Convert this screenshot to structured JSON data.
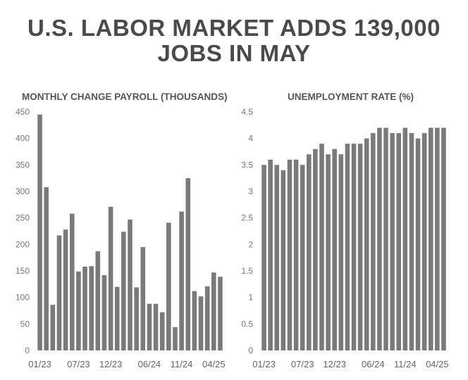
{
  "header": {
    "title_line1": "U.S. LABOR MARKET ADDS 139,000",
    "title_line2": "JOBS IN MAY"
  },
  "colors": {
    "bar": "#7a7a7a",
    "title": "#4a4a4a",
    "text": "#555555"
  },
  "chart_data": [
    {
      "type": "bar",
      "title": "MONTHLY CHANGE PAYROLL (THOUSANDS)",
      "ylim": [
        0,
        450
      ],
      "yticks": [
        "0",
        "50",
        "100",
        "150",
        "200",
        "250",
        "300",
        "350",
        "400",
        "450"
      ],
      "xtick_labels": [
        "01/23",
        "07/23",
        "12/23",
        "06/24",
        "11/24",
        "04/25"
      ],
      "xtick_index": [
        0,
        6,
        11,
        17,
        22,
        27
      ],
      "values": [
        445,
        308,
        86,
        217,
        228,
        258,
        149,
        158,
        159,
        187,
        142,
        271,
        120,
        224,
        247,
        119,
        195,
        88,
        88,
        72,
        241,
        44,
        262,
        325,
        112,
        102,
        121,
        147,
        139
      ],
      "grid": false
    },
    {
      "type": "bar",
      "title": "UNEMPLOYMENT RATE (%)",
      "ylim": [
        0,
        4.5
      ],
      "yticks": [
        "0",
        "0.5",
        "1",
        "1.5",
        "2",
        "2.5",
        "3",
        "3.5",
        "4",
        "4.5"
      ],
      "xtick_labels": [
        "01/23",
        "07/23",
        "12/23",
        "06/24",
        "11/24",
        "04/25"
      ],
      "xtick_index": [
        0,
        6,
        11,
        17,
        22,
        27
      ],
      "values": [
        3.5,
        3.6,
        3.5,
        3.4,
        3.6,
        3.6,
        3.5,
        3.7,
        3.8,
        3.9,
        3.7,
        3.8,
        3.7,
        3.9,
        3.9,
        3.9,
        4.0,
        4.1,
        4.2,
        4.2,
        4.1,
        4.1,
        4.2,
        4.1,
        4.0,
        4.1,
        4.2,
        4.2,
        4.2
      ],
      "grid": false
    }
  ]
}
